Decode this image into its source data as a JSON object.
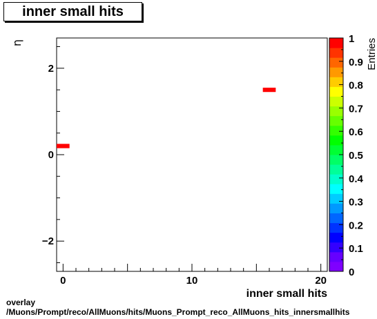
{
  "title": "inner small hits",
  "chart_data": {
    "type": "heatmap",
    "title": "inner small hits",
    "xlabel": "inner small hits",
    "ylabel": "η",
    "zlabel": "Entries",
    "xlim": [
      -0.5,
      20.5
    ],
    "ylim": [
      -2.7,
      2.7
    ],
    "zlim": [
      0,
      1
    ],
    "x_ticks": [
      0,
      10,
      20
    ],
    "y_ticks": [
      -2,
      0,
      2
    ],
    "z_ticks": [
      0,
      0.1,
      0.2,
      0.3,
      0.4,
      0.5,
      0.6,
      0.7,
      0.8,
      0.9,
      1
    ],
    "x_tick_labels": [
      "0",
      "10",
      "20"
    ],
    "y_tick_labels": [
      "−2",
      "0",
      "2"
    ],
    "z_tick_labels": [
      "0",
      "0.1",
      "0.2",
      "0.3",
      "0.4",
      "0.5",
      "0.6",
      "0.7",
      "0.8",
      "0.9",
      "1"
    ],
    "bins": [
      {
        "x0": -0.5,
        "x1": 0.5,
        "y0": 0.15,
        "y1": 0.25,
        "value": 1
      },
      {
        "x0": 15.5,
        "x1": 16.5,
        "y0": 1.45,
        "y1": 1.55,
        "value": 1
      }
    ],
    "grid": false,
    "palette": [
      "#7f00ff",
      "#6600ff",
      "#3300ff",
      "#0000ff",
      "#0033ff",
      "#0066ff",
      "#0099ff",
      "#00ccff",
      "#00ffff",
      "#00ffcc",
      "#00ff99",
      "#00ff66",
      "#00ff33",
      "#00ff00",
      "#33ff00",
      "#66ff00",
      "#99ff00",
      "#ccff00",
      "#ffff00",
      "#ffcc00",
      "#ff9900",
      "#ff6600",
      "#ff3300",
      "#ff0000"
    ]
  },
  "footer": {
    "line1": "overlay",
    "line2": "/Muons/Prompt/reco/AllMuons/hits/Muons_Prompt_reco_AllMuons_hits_innersmallhits"
  }
}
